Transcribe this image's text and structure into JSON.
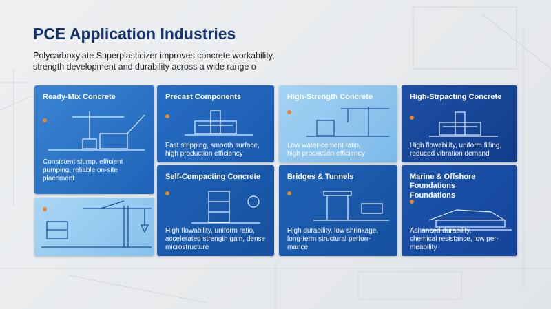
{
  "header": {
    "title": "PCE Application Industries",
    "subtitle_lines": [
      "Polycarboxylate Superplasticizer improves concrete workability,",
      "strength development and durability across a wide range o"
    ]
  },
  "cards": [
    {
      "title_lines": [
        "Ready-Mix Concrete"
      ],
      "description_lines": [
        "Consistent slump, efficient",
        "pumping, reliable on-site",
        "placement"
      ]
    },
    {
      "title_lines": [
        "Precast Components"
      ],
      "description_lines": [
        "Fast stripping, smooth surface,",
        "high production efficiency"
      ]
    },
    {
      "title_lines": [
        "High-Strength Concrete"
      ],
      "description_lines": [
        "Low water-cement ratio,",
        "high production efficiency"
      ]
    },
    {
      "title_lines": [
        "High-Strpacting Concrete"
      ],
      "description_lines": [
        "High flowability, uniform filling,",
        "reduced vibration demand"
      ]
    },
    {
      "title_lines": [
        "Self-Compacting Concrete"
      ],
      "description_lines": [
        "High flowability, uniform ratio,",
        "accelerated strength gain, dense",
        "microstructure"
      ]
    },
    {
      "title_lines": [
        "Bridges & Tunnels"
      ],
      "description_lines": [
        "High durability, low shrinkage,",
        "long-term structural perforr-",
        "mance"
      ]
    },
    {
      "title_lines": [
        "Marine & Offshore",
        "Foundations"
      ],
      "subtitle": "Foundations",
      "description_lines": [
        "Ashanced durability,",
        "chemical resistance, low per-",
        "meability"
      ]
    }
  ]
}
